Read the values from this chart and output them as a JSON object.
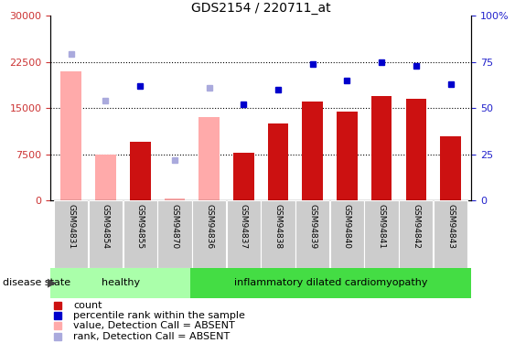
{
  "title": "GDS2154 / 220711_at",
  "samples": [
    "GSM94831",
    "GSM94854",
    "GSM94855",
    "GSM94870",
    "GSM94836",
    "GSM94837",
    "GSM94838",
    "GSM94839",
    "GSM94840",
    "GSM94841",
    "GSM94842",
    "GSM94843"
  ],
  "healthy_count": 4,
  "bar_values": [
    21000,
    7500,
    9500,
    300,
    13500,
    7800,
    12500,
    16000,
    14500,
    17000,
    16500,
    10500
  ],
  "percentile_values": [
    79,
    54,
    62,
    22,
    61,
    52,
    60,
    74,
    65,
    75,
    73,
    63
  ],
  "absent": [
    true,
    true,
    false,
    true,
    true,
    false,
    false,
    false,
    false,
    false,
    false,
    false
  ],
  "ylim_left": [
    0,
    30000
  ],
  "ylim_right": [
    0,
    100
  ],
  "yticks_left": [
    0,
    7500,
    15000,
    22500,
    30000
  ],
  "ytick_labels_left": [
    "0",
    "7500",
    "15000",
    "22500",
    "30000"
  ],
  "yticks_right": [
    0,
    25,
    50,
    75,
    100
  ],
  "ytick_labels_right": [
    "0",
    "25",
    "50",
    "75",
    "100%"
  ],
  "bar_color_present": "#cc1111",
  "bar_color_absent": "#ffaaaa",
  "scatter_color_present": "#0000cc",
  "scatter_color_absent": "#aaaadd",
  "healthy_bg_color": "#aaffaa",
  "disease_bg_color": "#44dd44",
  "xlabel_bg_color": "#cccccc",
  "legend_items": [
    "count",
    "percentile rank within the sample",
    "value, Detection Call = ABSENT",
    "rank, Detection Call = ABSENT"
  ],
  "legend_colors": [
    "#cc1111",
    "#0000cc",
    "#ffaaaa",
    "#aaaadd"
  ]
}
